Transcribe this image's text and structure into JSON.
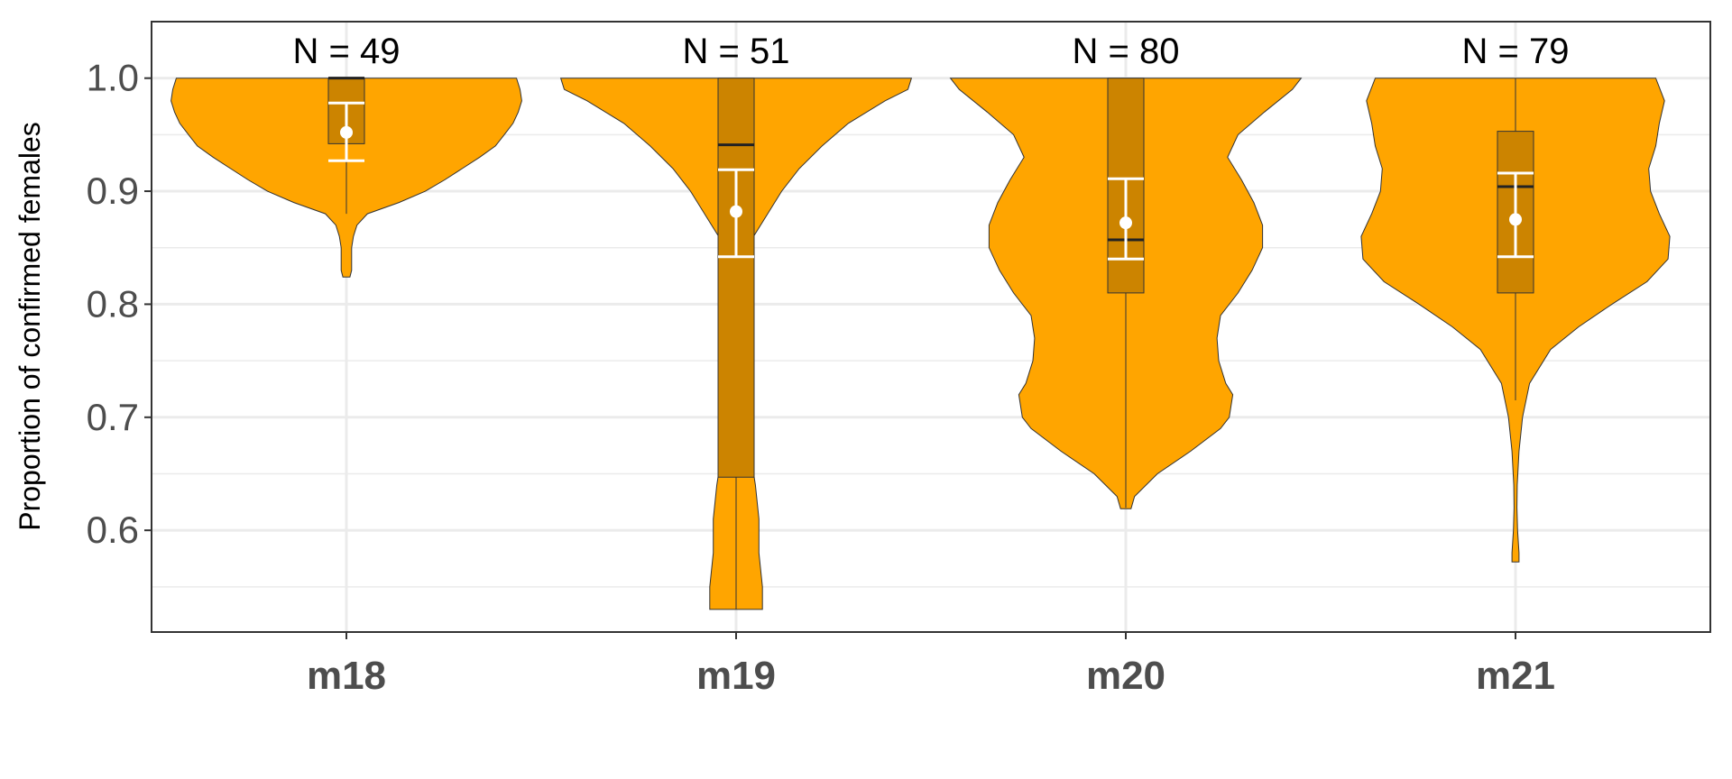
{
  "chart_data": {
    "type": "violin",
    "title": "",
    "xlabel": "",
    "ylabel": "Proportion of confirmed females",
    "ylim": [
      0.51,
      1.05
    ],
    "yticks": [
      "0.6",
      "0.7",
      "0.8",
      "0.9",
      "1.0"
    ],
    "grid": true,
    "legend": "none",
    "colors": {
      "violin_fill": "#FFA500",
      "box_fill": "#CC8400",
      "outline": "#333333",
      "mean_marker": "#FFFFFF",
      "grid": "#EBEBEB",
      "panel_border": "#333333"
    },
    "categories": [
      "m18",
      "m19",
      "m20",
      "m21"
    ],
    "n_labels": [
      "N = 49",
      "N = 51",
      "N = 80",
      "N = 79"
    ],
    "groups": [
      {
        "name": "m18",
        "min": 0.824,
        "max": 1.0,
        "density": [
          [
            0.824,
            0.02
          ],
          [
            0.83,
            0.03
          ],
          [
            0.84,
            0.03
          ],
          [
            0.85,
            0.03
          ],
          [
            0.86,
            0.04
          ],
          [
            0.87,
            0.06
          ],
          [
            0.88,
            0.12
          ],
          [
            0.89,
            0.3
          ],
          [
            0.9,
            0.45
          ],
          [
            0.91,
            0.56
          ],
          [
            0.92,
            0.66
          ],
          [
            0.93,
            0.76
          ],
          [
            0.94,
            0.85
          ],
          [
            0.95,
            0.9
          ],
          [
            0.96,
            0.95
          ],
          [
            0.97,
            0.98
          ],
          [
            0.98,
            1.0
          ],
          [
            0.99,
            0.99
          ],
          [
            1.0,
            0.97
          ]
        ],
        "box": {
          "q1": 0.942,
          "median": 1.0,
          "q3": 1.0,
          "whisker_low": 0.88,
          "whisker_high": 1.0
        },
        "mean": 0.952,
        "ci": [
          0.927,
          0.978
        ]
      },
      {
        "name": "m19",
        "min": 0.53,
        "max": 1.0,
        "density": [
          [
            0.53,
            0.15
          ],
          [
            0.55,
            0.15
          ],
          [
            0.58,
            0.13
          ],
          [
            0.61,
            0.13
          ],
          [
            0.64,
            0.11
          ],
          [
            0.66,
            0.09
          ],
          [
            0.68,
            0.05
          ],
          [
            0.7,
            0.01
          ],
          [
            0.75,
            0.005
          ],
          [
            0.8,
            0.005
          ],
          [
            0.84,
            0.01
          ],
          [
            0.86,
            0.1
          ],
          [
            0.88,
            0.18
          ],
          [
            0.9,
            0.26
          ],
          [
            0.92,
            0.36
          ],
          [
            0.94,
            0.49
          ],
          [
            0.96,
            0.64
          ],
          [
            0.98,
            0.85
          ],
          [
            0.99,
            0.98
          ],
          [
            1.0,
            1.0
          ]
        ],
        "box": {
          "q1": 0.647,
          "median": 0.941,
          "q3": 1.0,
          "whisker_low": 0.53,
          "whisker_high": 1.0
        },
        "mean": 0.882,
        "ci": [
          0.842,
          0.919
        ]
      },
      {
        "name": "m20",
        "min": 0.619,
        "max": 1.0,
        "density": [
          [
            0.619,
            0.03
          ],
          [
            0.63,
            0.05
          ],
          [
            0.65,
            0.18
          ],
          [
            0.67,
            0.37
          ],
          [
            0.69,
            0.54
          ],
          [
            0.7,
            0.59
          ],
          [
            0.72,
            0.61
          ],
          [
            0.73,
            0.57
          ],
          [
            0.75,
            0.53
          ],
          [
            0.77,
            0.52
          ],
          [
            0.79,
            0.54
          ],
          [
            0.81,
            0.64
          ],
          [
            0.83,
            0.72
          ],
          [
            0.85,
            0.78
          ],
          [
            0.87,
            0.78
          ],
          [
            0.89,
            0.73
          ],
          [
            0.91,
            0.66
          ],
          [
            0.93,
            0.58
          ],
          [
            0.95,
            0.64
          ],
          [
            0.97,
            0.79
          ],
          [
            0.99,
            0.95
          ],
          [
            1.0,
            1.0
          ]
        ],
        "box": {
          "q1": 0.81,
          "median": 0.857,
          "q3": 1.0,
          "whisker_low": 0.62,
          "whisker_high": 1.0
        },
        "mean": 0.872,
        "ci": [
          0.84,
          0.911
        ]
      },
      {
        "name": "m21",
        "min": 0.572,
        "max": 1.0,
        "density": [
          [
            0.572,
            0.02
          ],
          [
            0.58,
            0.02
          ],
          [
            0.6,
            0.012
          ],
          [
            0.62,
            0.008
          ],
          [
            0.64,
            0.01
          ],
          [
            0.67,
            0.02
          ],
          [
            0.7,
            0.04
          ],
          [
            0.73,
            0.08
          ],
          [
            0.76,
            0.2
          ],
          [
            0.78,
            0.36
          ],
          [
            0.8,
            0.55
          ],
          [
            0.82,
            0.75
          ],
          [
            0.84,
            0.87
          ],
          [
            0.86,
            0.88
          ],
          [
            0.88,
            0.82
          ],
          [
            0.9,
            0.77
          ],
          [
            0.92,
            0.76
          ],
          [
            0.94,
            0.8
          ],
          [
            0.96,
            0.82
          ],
          [
            0.98,
            0.85
          ],
          [
            1.0,
            0.8
          ]
        ],
        "box": {
          "q1": 0.81,
          "median": 0.904,
          "q3": 0.953,
          "whisker_low": 0.715,
          "whisker_high": 1.0
        },
        "mean": 0.875,
        "ci": [
          0.842,
          0.916
        ]
      }
    ]
  }
}
